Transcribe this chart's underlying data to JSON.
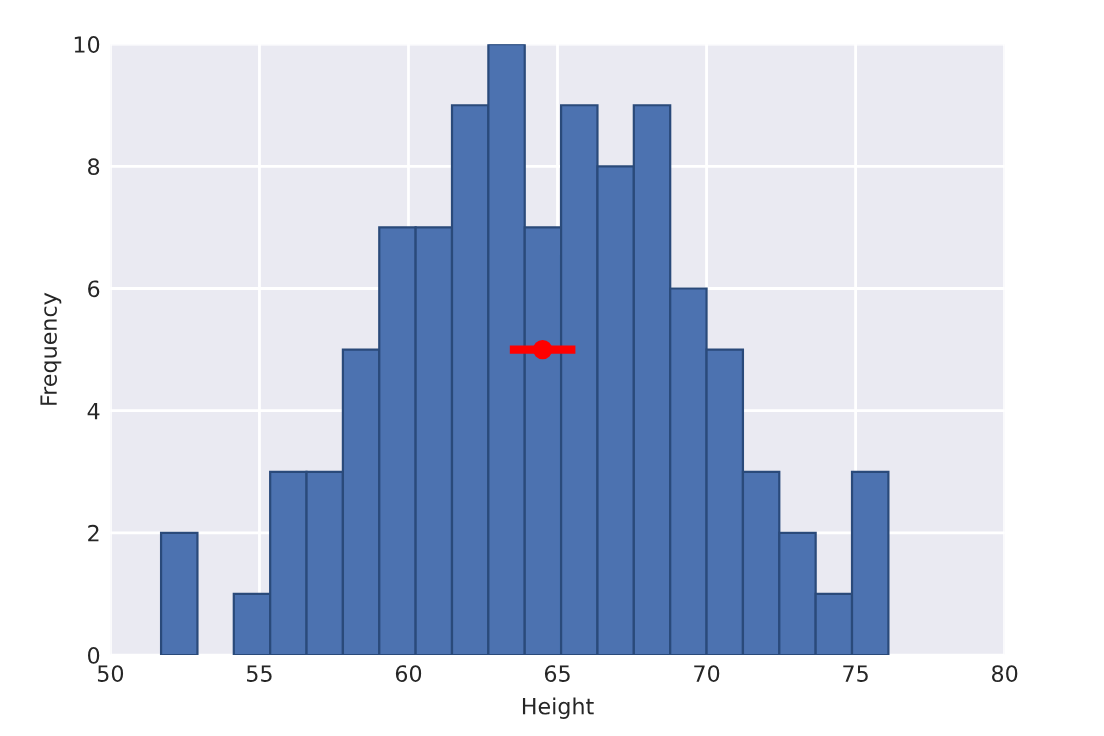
{
  "chart_data": {
    "type": "histogram",
    "xlabel": "Height",
    "ylabel": "Frequency",
    "bins": [
      51.7,
      52.92,
      54.14,
      55.36,
      56.58,
      57.8,
      59.02,
      60.24,
      61.46,
      62.68,
      63.9,
      65.12,
      66.34,
      67.56,
      68.78,
      70.0,
      71.22,
      72.44,
      73.66,
      74.88,
      76.1
    ],
    "values": [
      2,
      0,
      1,
      3,
      3,
      5,
      7,
      7,
      9,
      10,
      7,
      9,
      8,
      9,
      6,
      5,
      3,
      2,
      1,
      3
    ],
    "color": "#4c72b0",
    "series": [
      {
        "type": "scatter",
        "color": "#ff0000",
        "x": [
          64.5
        ],
        "values": [
          5
        ],
        "xerrors": [
          1.1
        ]
      }
    ],
    "xlim": [
      50,
      80
    ],
    "ylim": [
      0,
      10
    ],
    "xticks": [
      50,
      55,
      60,
      65,
      70,
      75,
      80
    ],
    "yticks": [
      0,
      2,
      4,
      6,
      8,
      10
    ],
    "grid": true
  }
}
